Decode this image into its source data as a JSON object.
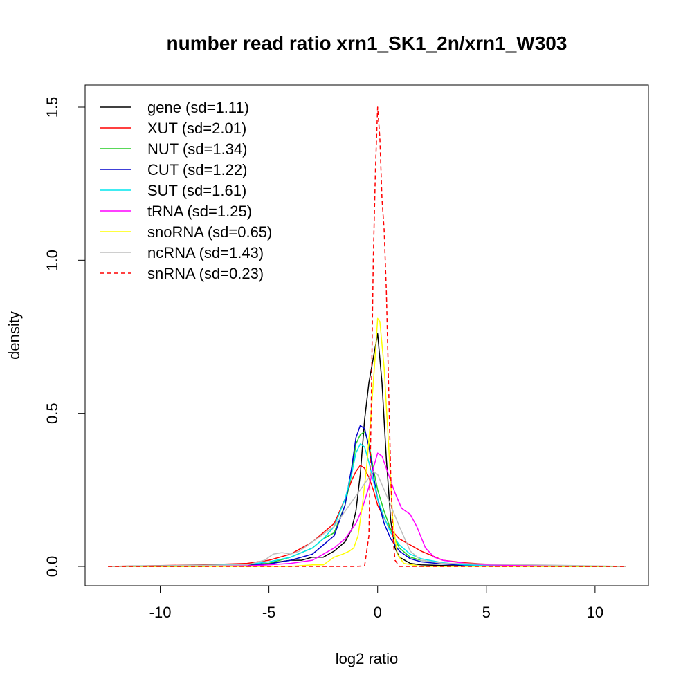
{
  "chart_data": {
    "type": "line",
    "title": "number read ratio xrn1_SK1_2n/xrn1_W303",
    "xlabel": "log2 ratio",
    "ylabel": "density",
    "xlim": [
      -12.5,
      11.5
    ],
    "ylim": [
      0,
      1.5
    ],
    "x_ticks": [
      -10,
      -5,
      0,
      5,
      10
    ],
    "x_tick_labels": [
      "-10",
      "-5",
      "0",
      "5",
      "10"
    ],
    "y_ticks": [
      0,
      0.5,
      1.0,
      1.5
    ],
    "y_tick_labels": [
      "0.0",
      "0.5",
      "1.0",
      "1.5"
    ],
    "grid": false,
    "legend_position": "top-left",
    "series": [
      {
        "name": "gene (sd=1.11)",
        "color": "#000000",
        "dash": "solid",
        "x": [
          -12.4,
          -8,
          -6,
          -5,
          -4,
          -3.5,
          -3,
          -2.5,
          -2,
          -1.5,
          -1.2,
          -1,
          -0.8,
          -0.6,
          -0.4,
          -0.2,
          0,
          0.2,
          0.4,
          0.6,
          0.8,
          1.0,
          1.5,
          2,
          3,
          5,
          8,
          11.4
        ],
        "y": [
          0,
          0,
          0.005,
          0.01,
          0.02,
          0.02,
          0.03,
          0.03,
          0.05,
          0.08,
          0.12,
          0.18,
          0.3,
          0.48,
          0.6,
          0.68,
          0.76,
          0.6,
          0.35,
          0.15,
          0.06,
          0.03,
          0.01,
          0.005,
          0.003,
          0.001,
          0,
          0
        ]
      },
      {
        "name": "XUT (sd=2.01)",
        "color": "#ff0000",
        "dash": "solid",
        "x": [
          -12.4,
          -8,
          -6,
          -5,
          -4,
          -3,
          -2.5,
          -2,
          -1.5,
          -1.2,
          -1,
          -0.8,
          -0.6,
          -0.4,
          -0.2,
          0,
          0.5,
          1,
          1.5,
          2,
          3,
          4,
          5,
          7,
          9,
          11.4
        ],
        "y": [
          0,
          0.005,
          0.01,
          0.02,
          0.04,
          0.08,
          0.11,
          0.14,
          0.22,
          0.28,
          0.31,
          0.33,
          0.32,
          0.29,
          0.25,
          0.2,
          0.13,
          0.09,
          0.07,
          0.05,
          0.02,
          0.012,
          0.007,
          0.003,
          0.001,
          0
        ]
      },
      {
        "name": "NUT (sd=1.34)",
        "color": "#22cc22",
        "dash": "solid",
        "x": [
          -12.4,
          -6,
          -5,
          -4,
          -3,
          -2.5,
          -2,
          -1.5,
          -1.2,
          -1,
          -0.8,
          -0.6,
          -0.4,
          -0.2,
          0,
          0.3,
          0.6,
          1,
          1.5,
          2,
          3,
          4,
          6,
          11.4
        ],
        "y": [
          0,
          0.003,
          0.01,
          0.03,
          0.06,
          0.09,
          0.11,
          0.2,
          0.3,
          0.4,
          0.43,
          0.44,
          0.4,
          0.32,
          0.25,
          0.18,
          0.12,
          0.06,
          0.03,
          0.02,
          0.01,
          0.005,
          0.001,
          0
        ]
      },
      {
        "name": "CUT (sd=1.22)",
        "color": "#0000cc",
        "dash": "solid",
        "x": [
          -12.4,
          -6,
          -5,
          -4,
          -3,
          -2.5,
          -2,
          -1.5,
          -1.2,
          -1,
          -0.8,
          -0.6,
          -0.4,
          -0.2,
          0,
          0.3,
          0.6,
          1,
          1.5,
          2,
          3,
          4,
          6,
          11.4
        ],
        "y": [
          0,
          0.003,
          0.008,
          0.02,
          0.04,
          0.07,
          0.1,
          0.2,
          0.32,
          0.42,
          0.46,
          0.45,
          0.39,
          0.3,
          0.22,
          0.14,
          0.09,
          0.05,
          0.025,
          0.015,
          0.008,
          0.004,
          0.001,
          0
        ]
      },
      {
        "name": "SUT (sd=1.61)",
        "color": "#00e5ee",
        "dash": "solid",
        "x": [
          -12.4,
          -8,
          -6,
          -5,
          -4,
          -3,
          -2.5,
          -2,
          -1.5,
          -1.2,
          -1,
          -0.8,
          -0.6,
          -0.4,
          -0.2,
          0,
          0.3,
          0.6,
          1,
          1.5,
          2,
          3,
          4,
          6,
          11.4
        ],
        "y": [
          0,
          0.004,
          0.006,
          0.015,
          0.03,
          0.06,
          0.09,
          0.13,
          0.22,
          0.3,
          0.37,
          0.4,
          0.39,
          0.34,
          0.28,
          0.22,
          0.16,
          0.11,
          0.07,
          0.04,
          0.025,
          0.012,
          0.005,
          0.001,
          0
        ]
      },
      {
        "name": "tRNA (sd=1.25)",
        "color": "#ff00ff",
        "dash": "solid",
        "x": [
          -12.4,
          -6,
          -5,
          -4,
          -3,
          -2.5,
          -2,
          -1.5,
          -1,
          -0.7,
          -0.4,
          -0.2,
          0,
          0.2,
          0.5,
          0.8,
          1.1,
          1.5,
          1.8,
          2.2,
          2.6,
          3,
          4,
          5,
          6,
          11.4
        ],
        "y": [
          0,
          0.002,
          0.005,
          0.01,
          0.02,
          0.04,
          0.06,
          0.09,
          0.14,
          0.19,
          0.26,
          0.32,
          0.37,
          0.36,
          0.3,
          0.24,
          0.19,
          0.17,
          0.13,
          0.06,
          0.03,
          0.02,
          0.01,
          0.005,
          0.004,
          0
        ]
      },
      {
        "name": "snoRNA (sd=0.65)",
        "color": "#ffff00",
        "dash": "solid",
        "x": [
          -12.4,
          -4,
          -3,
          -2.5,
          -2,
          -1.6,
          -1.3,
          -1.1,
          -0.9,
          -0.7,
          -0.5,
          -0.3,
          -0.1,
          0,
          0.1,
          0.3,
          0.5,
          0.7,
          0.9,
          1.2,
          2,
          11.4
        ],
        "y": [
          0,
          0,
          0.005,
          0.005,
          0.03,
          0.04,
          0.05,
          0.06,
          0.1,
          0.2,
          0.33,
          0.5,
          0.7,
          0.81,
          0.8,
          0.65,
          0.4,
          0.15,
          0.04,
          0.01,
          0,
          0
        ]
      },
      {
        "name": "ncRNA (sd=1.43)",
        "color": "#bebebe",
        "dash": "solid",
        "x": [
          -12.4,
          -6,
          -5.2,
          -4.8,
          -4.4,
          -4,
          -3.6,
          -3.2,
          -2.8,
          -2.4,
          -2,
          -1.5,
          -1,
          -0.5,
          -0.2,
          0,
          0.3,
          0.6,
          1,
          1.5,
          2,
          3,
          11.4
        ],
        "y": [
          0,
          0.005,
          0.02,
          0.04,
          0.045,
          0.04,
          0.05,
          0.07,
          0.09,
          0.11,
          0.13,
          0.18,
          0.23,
          0.28,
          0.31,
          0.3,
          0.25,
          0.2,
          0.13,
          0.05,
          0.02,
          0.01,
          0
        ]
      },
      {
        "name": "snRNA (sd=0.23)",
        "color": "#ff0000",
        "dash": "dashed",
        "x": [
          -12.4,
          -1,
          -0.6,
          -0.4,
          -0.3,
          -0.2,
          -0.1,
          0,
          0.1,
          0.2,
          0.3,
          0.4,
          0.5,
          0.6,
          0.7,
          0.8,
          1,
          11.4
        ],
        "y": [
          0,
          0,
          0.002,
          0.1,
          0.5,
          1.0,
          1.3,
          1.5,
          1.4,
          1.2,
          1.1,
          0.9,
          0.6,
          0.3,
          0.1,
          0.02,
          0,
          0
        ]
      }
    ]
  }
}
